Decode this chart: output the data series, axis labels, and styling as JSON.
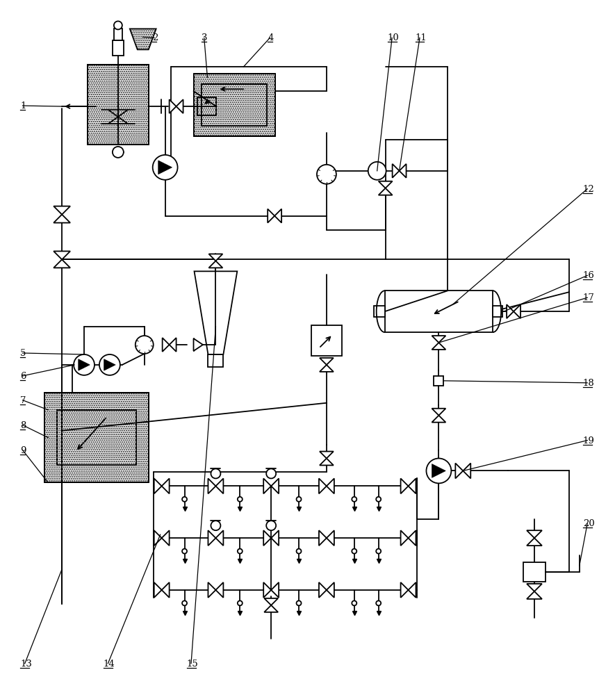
{
  "bg": "#ffffff",
  "lc": "#000000",
  "lw": 1.3,
  "labels": [
    "1",
    "2",
    "3",
    "4",
    "5",
    "6",
    "7",
    "8",
    "9",
    "10",
    "11",
    "12",
    "13",
    "14",
    "15",
    "16",
    "17",
    "18",
    "19",
    "20"
  ]
}
